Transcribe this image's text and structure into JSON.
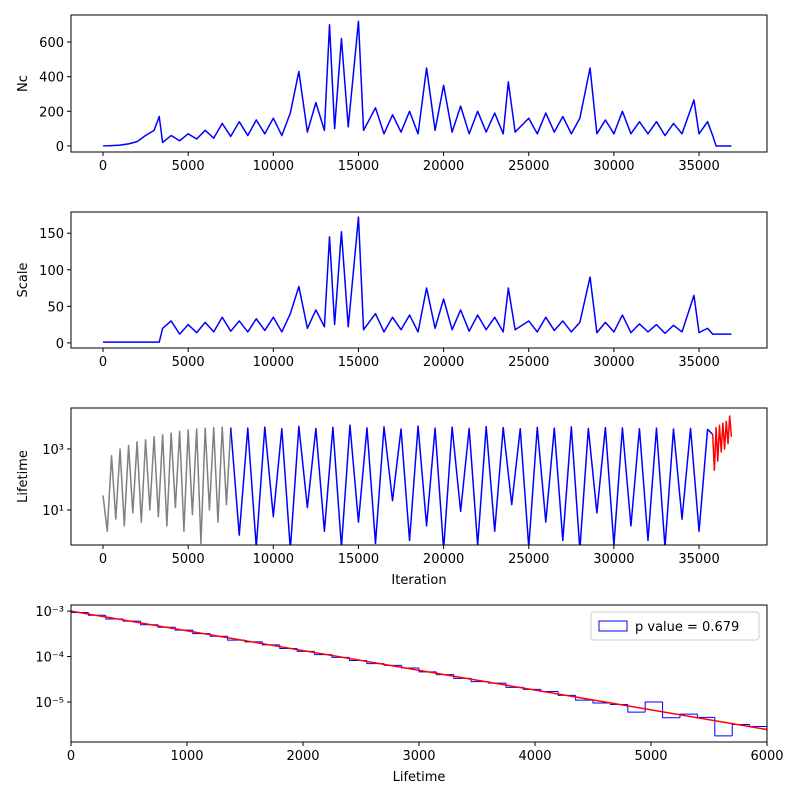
{
  "chart_data": [
    {
      "type": "line",
      "ylabel": "Nc",
      "xlim": [
        -1880,
        38990
      ],
      "ylim": [
        -35,
        756
      ],
      "xticks": [
        0,
        5000,
        10000,
        15000,
        20000,
        25000,
        30000,
        35000
      ],
      "yticks": [
        0,
        200,
        400,
        600
      ],
      "series": [
        {
          "color": "#0000ff",
          "x": [
            0,
            500,
            1000,
            1500,
            2000,
            2500,
            3000,
            3300,
            3500,
            4000,
            4500,
            5000,
            5500,
            6000,
            6500,
            7000,
            7500,
            8000,
            8500,
            9000,
            9500,
            10000,
            10500,
            11000,
            11500,
            12000,
            12500,
            13000,
            13300,
            13600,
            14000,
            14400,
            15000,
            15300,
            16000,
            16500,
            17000,
            17500,
            18000,
            18500,
            19000,
            19500,
            20000,
            20500,
            21000,
            21500,
            22000,
            22500,
            23000,
            23500,
            23800,
            24200,
            25000,
            25500,
            26000,
            26500,
            27000,
            27500,
            28000,
            28600,
            29000,
            29500,
            30000,
            30500,
            31000,
            31500,
            32000,
            32500,
            33000,
            33500,
            34000,
            34700,
            35000,
            35500,
            35800,
            36000,
            36900
          ],
          "values": [
            0,
            2,
            5,
            12,
            25,
            60,
            90,
            170,
            20,
            60,
            30,
            70,
            40,
            90,
            45,
            130,
            55,
            140,
            60,
            150,
            70,
            160,
            60,
            190,
            430,
            80,
            250,
            90,
            700,
            100,
            620,
            110,
            720,
            90,
            220,
            70,
            180,
            80,
            200,
            70,
            450,
            90,
            350,
            80,
            230,
            70,
            200,
            80,
            190,
            70,
            370,
            80,
            160,
            70,
            190,
            80,
            170,
            70,
            160,
            450,
            70,
            150,
            70,
            200,
            70,
            140,
            70,
            140,
            60,
            130,
            70,
            265,
            70,
            140,
            60,
            0,
            0
          ]
        }
      ]
    },
    {
      "type": "line",
      "ylabel": "Scale",
      "xlim": [
        -1880,
        38990
      ],
      "ylim": [
        -7,
        179
      ],
      "xticks": [
        0,
        5000,
        10000,
        15000,
        20000,
        25000,
        30000,
        35000
      ],
      "yticks": [
        0,
        50,
        100,
        150
      ],
      "series": [
        {
          "color": "#0000ff",
          "x": [
            0,
            500,
            1000,
            1500,
            2000,
            2500,
            3000,
            3300,
            3500,
            4000,
            4500,
            5000,
            5500,
            6000,
            6500,
            7000,
            7500,
            8000,
            8500,
            9000,
            9500,
            10000,
            10500,
            11000,
            11500,
            12000,
            12500,
            13000,
            13300,
            13600,
            14000,
            14400,
            15000,
            15300,
            16000,
            16500,
            17000,
            17500,
            18000,
            18500,
            19000,
            19500,
            20000,
            20500,
            21000,
            21500,
            22000,
            22500,
            23000,
            23500,
            23800,
            24200,
            25000,
            25500,
            26000,
            26500,
            27000,
            27500,
            28000,
            28600,
            29000,
            29500,
            30000,
            30500,
            31000,
            31500,
            32000,
            32500,
            33000,
            33500,
            34000,
            34700,
            35000,
            35500,
            35800,
            36000,
            36900
          ],
          "values": [
            1,
            1,
            1,
            1,
            1,
            1,
            1,
            1,
            20,
            30,
            12,
            25,
            14,
            28,
            15,
            35,
            16,
            30,
            15,
            33,
            17,
            35,
            15,
            40,
            77,
            20,
            45,
            22,
            145,
            25,
            152,
            22,
            172,
            18,
            40,
            15,
            35,
            18,
            38,
            15,
            75,
            20,
            60,
            18,
            45,
            16,
            38,
            18,
            35,
            15,
            75,
            18,
            30,
            15,
            35,
            17,
            30,
            15,
            28,
            90,
            14,
            28,
            15,
            38,
            14,
            26,
            15,
            25,
            13,
            24,
            15,
            65,
            14,
            20,
            12,
            12,
            12
          ]
        }
      ]
    },
    {
      "type": "line",
      "ylabel": "Lifetime",
      "xlabel": "Iteration",
      "yscale": "log",
      "xlim": [
        -1880,
        38990
      ],
      "ylim": [
        0.71,
        22000
      ],
      "xticks": [
        0,
        5000,
        10000,
        15000,
        20000,
        25000,
        30000,
        35000
      ],
      "yticks": [
        {
          "value": 10,
          "label": "10¹"
        },
        {
          "value": 1000,
          "label": "10³"
        }
      ],
      "series": [
        {
          "color": "#808080",
          "x": [
            0,
            250,
            500,
            750,
            1000,
            1250,
            1500,
            1750,
            2000,
            2250,
            2500,
            2750,
            3000,
            3250,
            3500,
            3750,
            4000,
            4250,
            4500,
            4750,
            5000,
            5250,
            5500,
            5750,
            6000,
            6250,
            6500,
            6750,
            7000,
            7250,
            7500
          ],
          "values": [
            30,
            2,
            600,
            5,
            1000,
            3,
            1300,
            8,
            1700,
            4,
            2000,
            10,
            2500,
            6,
            2900,
            3,
            3300,
            12,
            3800,
            2,
            4200,
            7,
            4500,
            0.8,
            4800,
            10,
            5000,
            4,
            5200,
            15,
            5000
          ]
        },
        {
          "color": "#0000ff",
          "x": [
            7500,
            8000,
            8500,
            9000,
            9500,
            10000,
            10500,
            11000,
            11500,
            12000,
            12500,
            13000,
            13500,
            14000,
            14500,
            15000,
            15500,
            16000,
            16500,
            17000,
            17500,
            18000,
            18500,
            19000,
            19500,
            20000,
            20500,
            21000,
            21500,
            22000,
            22500,
            23000,
            23500,
            24000,
            24500,
            25000,
            25500,
            26000,
            26500,
            27000,
            27500,
            28000,
            28500,
            29000,
            29500,
            30000,
            30500,
            31000,
            31500,
            32000,
            32500,
            33000,
            33500,
            34000,
            34500,
            35000,
            35500,
            35800
          ],
          "values": [
            5000,
            1.5,
            4800,
            0.6,
            5200,
            6,
            4600,
            0.5,
            5500,
            12,
            4700,
            2,
            5100,
            0.6,
            6000,
            4,
            4900,
            0.8,
            5300,
            20,
            4500,
            1,
            5600,
            3,
            4800,
            0.5,
            5200,
            9,
            4700,
            0.7,
            5400,
            2,
            5000,
            15,
            4600,
            0.6,
            5100,
            4,
            4800,
            1,
            5300,
            0.5,
            4700,
            8,
            5000,
            0.7,
            4900,
            3,
            4600,
            1,
            4800,
            0.6,
            4500,
            5,
            4700,
            2,
            4400,
            3000
          ]
        },
        {
          "color": "#ff0000",
          "x": [
            35800,
            35900,
            36000,
            36100,
            36200,
            36300,
            36400,
            36500,
            36600,
            36700,
            36800,
            36900
          ],
          "values": [
            3000,
            200,
            5000,
            400,
            6000,
            800,
            7000,
            1000,
            8000,
            1500,
            12000,
            2500
          ]
        }
      ]
    },
    {
      "type": "histogram",
      "xlabel": "Lifetime",
      "yscale": "log",
      "legend": "upper right",
      "xlim": [
        0,
        6000
      ],
      "ylim": [
        1.32e-06,
        0.00136
      ],
      "xticks": [
        0,
        1000,
        2000,
        3000,
        4000,
        5000,
        6000
      ],
      "yticks": [
        {
          "value": 1e-05,
          "label": "10⁻⁵"
        },
        {
          "value": 0.0001,
          "label": "10⁻⁴"
        },
        {
          "value": 0.001,
          "label": "10⁻³"
        }
      ],
      "series": [
        {
          "name": "p value = 0.679",
          "color": "#0000ff",
          "bins": [
            0,
            150,
            300,
            450,
            600,
            750,
            900,
            1050,
            1200,
            1350,
            1500,
            1650,
            1800,
            1950,
            2100,
            2250,
            2400,
            2550,
            2700,
            2850,
            3000,
            3150,
            3300,
            3450,
            3600,
            3750,
            3900,
            4050,
            4200,
            4350,
            4500,
            4650,
            4800,
            4950,
            5100,
            5250,
            5400,
            5550,
            5700,
            5850,
            6000
          ],
          "values": [
            0.00093,
            0.00081,
            0.00067,
            0.0006,
            0.0005,
            0.00044,
            0.00038,
            0.00032,
            0.00028,
            0.00023,
            0.00021,
            0.00018,
            0.00015,
            0.00013,
            0.00011,
            9.6e-05,
            8.2e-05,
            7e-05,
            6.4e-05,
            5.6e-05,
            4.6e-05,
            4e-05,
            3.3e-05,
            2.8e-05,
            2.6e-05,
            2.1e-05,
            1.9e-05,
            1.7e-05,
            1.4e-05,
            1.1e-05,
            9.5e-06,
            8.8e-06,
            6e-06,
            1e-05,
            4.5e-06,
            5.4e-06,
            4.6e-06,
            1.8e-06,
            3.2e-06,
            2.9e-06
          ]
        }
      ],
      "fit": {
        "color": "#ff0000",
        "x": [
          0,
          6000
        ],
        "values": [
          0.001,
          2.48e-06
        ]
      }
    }
  ]
}
